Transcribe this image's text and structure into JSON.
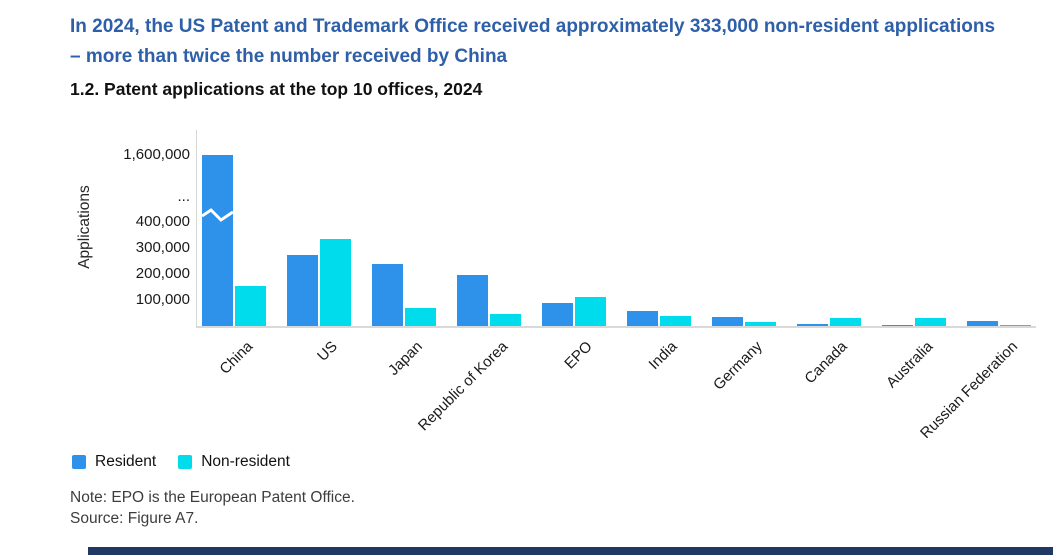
{
  "header": {
    "headline": "In 2024, the US Patent and Trademark Office received approximately 333,000 non-resident applications – more than twice the number received by China",
    "chart_title": "1.2. Patent applications at the top 10 offices, 2024"
  },
  "chart_data": {
    "type": "bar",
    "title": "1.2. Patent applications at the top 10 offices, 2024",
    "xlabel": "",
    "ylabel": "Applications",
    "grid": false,
    "legend_position": "bottom-left",
    "axis_break": {
      "present": true,
      "break_label": "...",
      "note": "y-axis broken between 400,000 and 1,600,000; China resident bar crosses the break"
    },
    "y_tick_labels": [
      "1,600,000",
      "...",
      "400,000",
      "300,000",
      "200,000",
      "100,000"
    ],
    "ylim": [
      0,
      1700000
    ],
    "categories": [
      "China",
      "US",
      "Japan",
      "Republic of Korea",
      "EPO",
      "India",
      "Germany",
      "Canada",
      "Australia",
      "Russian Federation"
    ],
    "series": [
      {
        "name": "Resident",
        "color": "#2e91ea",
        "values": [
          1650000,
          272000,
          238000,
          196000,
          89000,
          58000,
          34000,
          6000,
          2000,
          21000
        ]
      },
      {
        "name": "Non-resident",
        "color": "#00dcec",
        "values": [
          155000,
          333000,
          68000,
          45000,
          110000,
          37000,
          17000,
          29000,
          29000,
          4000
        ]
      }
    ]
  },
  "legend": {
    "items": [
      {
        "label": "Resident",
        "color": "#2e91ea"
      },
      {
        "label": "Non-resident",
        "color": "#00dcec"
      }
    ]
  },
  "footer": {
    "note": "Note: EPO is the European Patent Office.",
    "source": "Source: Figure A7."
  },
  "colors": {
    "headline_blue": "#2e5fa9",
    "bar_resident": "#2e91ea",
    "bar_non_resident": "#00dcec",
    "axis_line": "#d9d9d9",
    "bottom_strip": "#1f3864"
  }
}
